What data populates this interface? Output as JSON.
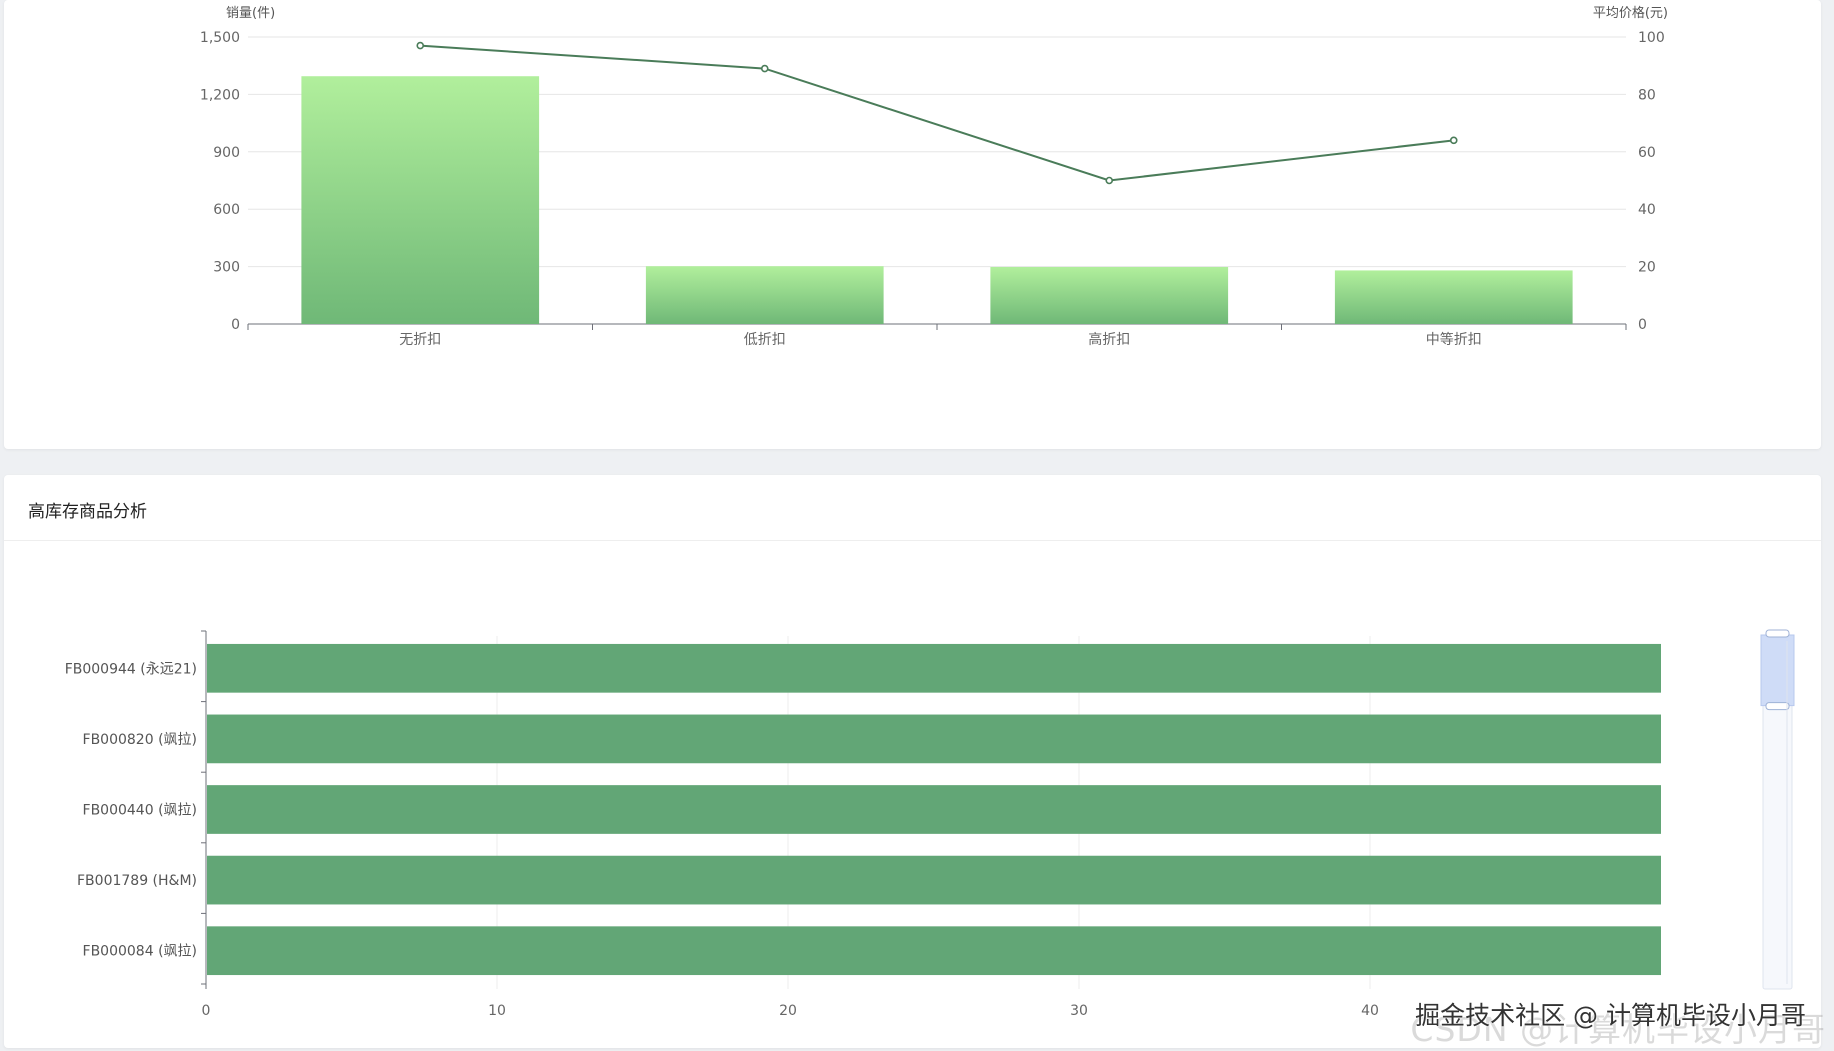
{
  "top_chart": {
    "chart_data": {
      "type": "bar",
      "categories": [
        "无折扣",
        "低折扣",
        "高折扣",
        "中等折扣"
      ],
      "series": [
        {
          "type": "bar",
          "axis": "left",
          "values": [
            1295,
            302,
            298,
            280
          ]
        },
        {
          "type": "line",
          "axis": "right",
          "values": [
            97,
            89,
            50,
            64
          ]
        }
      ],
      "ylabel_left": "销量(件)",
      "ylabel_right": "平均价格(元)",
      "ylim_left": [
        0,
        1500
      ],
      "ylim_right": [
        0,
        100
      ],
      "yticks_left": [
        "0",
        "300",
        "600",
        "900",
        "1,200",
        "1,500"
      ],
      "yticks_right": [
        "0",
        "20",
        "40",
        "60",
        "80",
        "100"
      ],
      "grid": true,
      "colors": {
        "bar_top": "#b1ef9c",
        "bar_bottom": "#6fb877",
        "line": "#4a7c59"
      }
    }
  },
  "bottom_chart": {
    "title": "高库存商品分析",
    "chart_data": {
      "type": "bar",
      "orientation": "horizontal",
      "categories": [
        "FB000944 (永远21)",
        "FB000820 (飒拉)",
        "FB000440 (飒拉)",
        "FB001789 (H&M)",
        "FB000084 (飒拉)"
      ],
      "values": [
        50,
        50,
        50,
        50,
        50
      ],
      "xticks": [
        "0",
        "10",
        "20",
        "30",
        "40"
      ],
      "xlim": [
        0,
        50
      ],
      "grid": true,
      "colors": {
        "bar": "#62a676"
      },
      "scrollbar": {
        "window_fraction": 0.2
      }
    }
  },
  "watermark": {
    "text": "掘金技术社区 @ 计算机毕设小月哥",
    "faded_text": "CSDN @计算机毕设小月哥"
  }
}
